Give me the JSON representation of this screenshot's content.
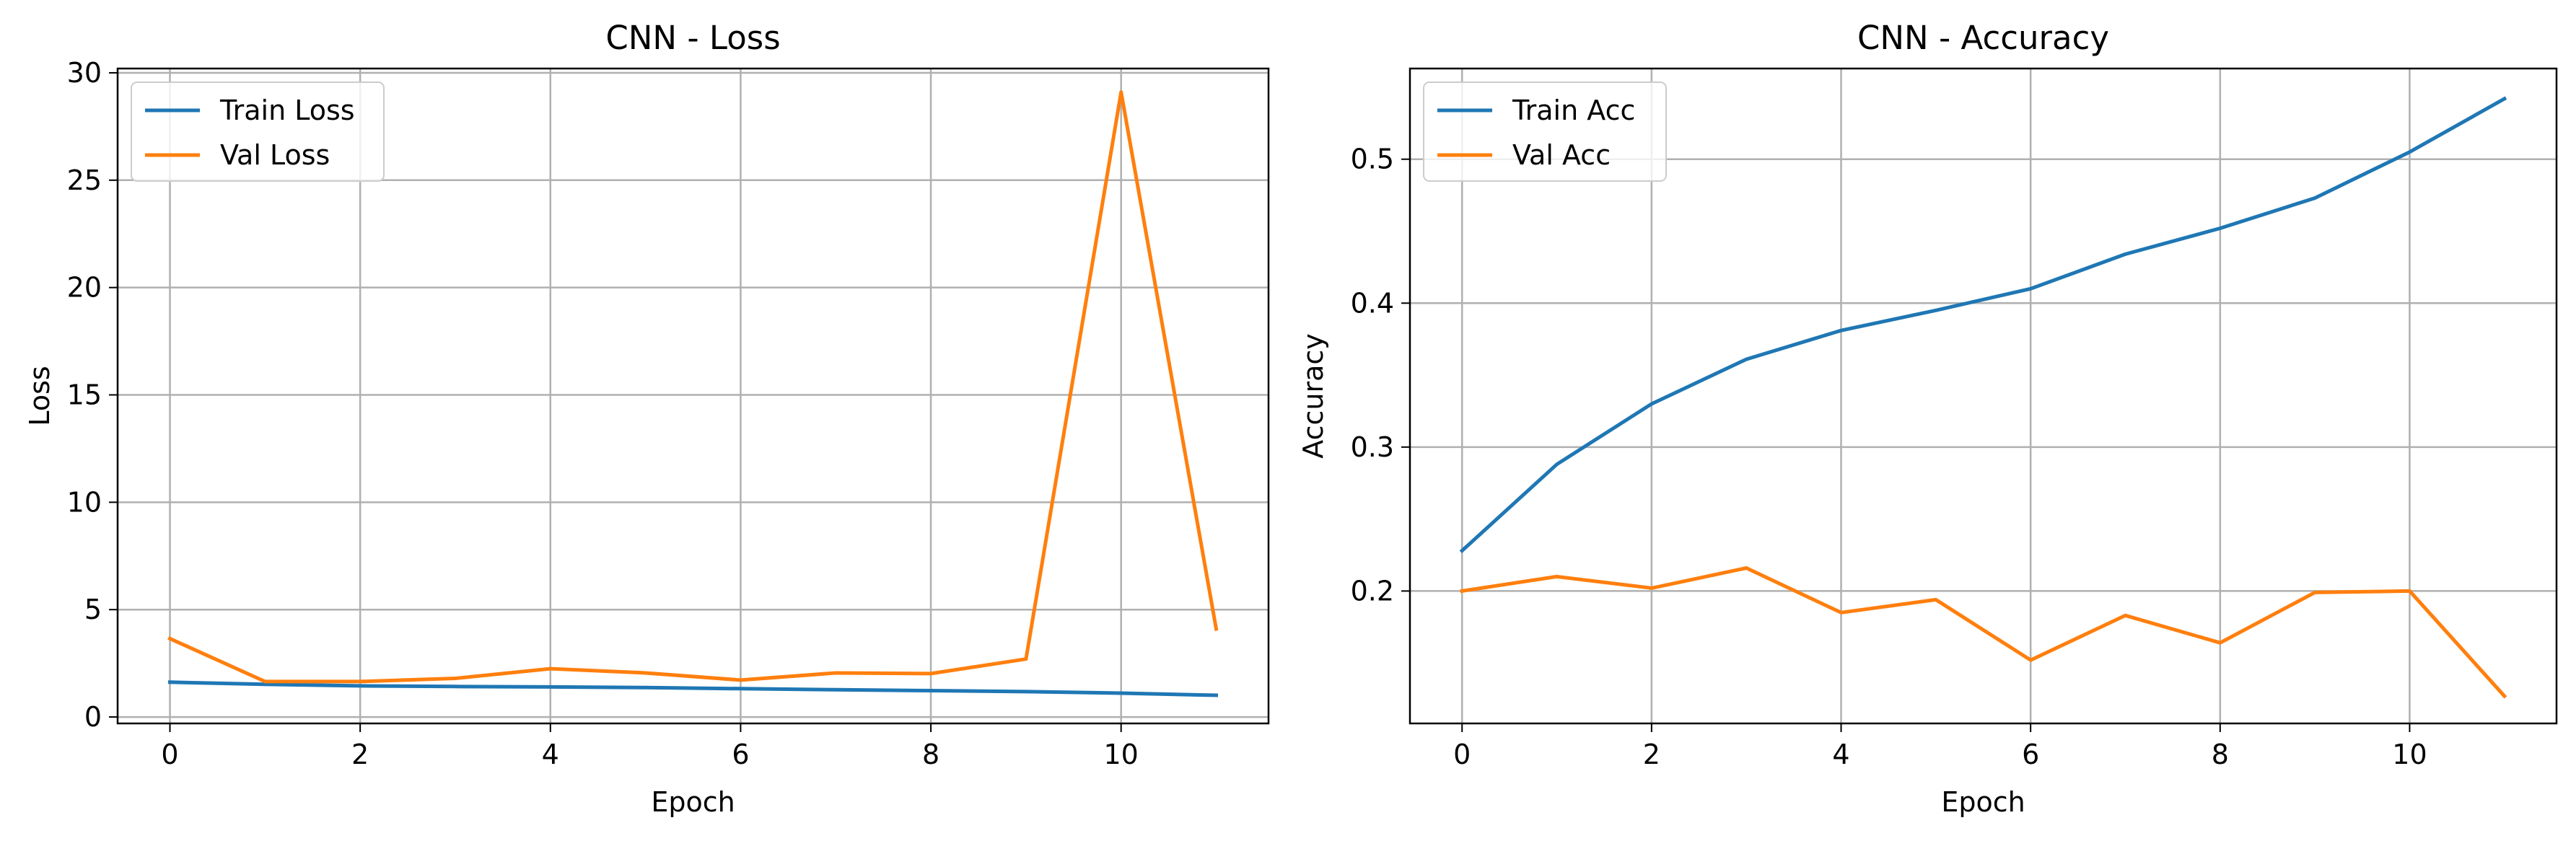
{
  "chart_data": [
    {
      "type": "line",
      "title": "CNN - Loss",
      "xlabel": "Epoch",
      "ylabel": "Loss",
      "xlim": [
        -0.55,
        11.55
      ],
      "ylim": [
        -0.3,
        30.2
      ],
      "xticks": [
        0,
        2,
        4,
        6,
        8,
        10
      ],
      "yticks": [
        0,
        5,
        10,
        15,
        20,
        25,
        30
      ],
      "grid": true,
      "legend_position": "upper left",
      "x": [
        0,
        1,
        2,
        3,
        4,
        5,
        6,
        7,
        8,
        9,
        10,
        11
      ],
      "series": [
        {
          "name": "Train Loss",
          "color": "#1f77b4",
          "values": [
            1.62,
            1.52,
            1.45,
            1.42,
            1.4,
            1.37,
            1.32,
            1.27,
            1.23,
            1.18,
            1.11,
            1.01
          ]
        },
        {
          "name": "Val Loss",
          "color": "#ff7f0e",
          "values": [
            3.65,
            1.65,
            1.65,
            1.8,
            2.25,
            2.05,
            1.72,
            2.05,
            2.02,
            2.7,
            29.1,
            4.1
          ]
        }
      ]
    },
    {
      "type": "line",
      "title": "CNN - Accuracy",
      "xlabel": "Epoch",
      "ylabel": "Accuracy",
      "xlim": [
        -0.55,
        11.55
      ],
      "ylim": [
        0.108,
        0.563
      ],
      "xticks": [
        0,
        2,
        4,
        6,
        8,
        10
      ],
      "yticks": [
        0.2,
        0.3,
        0.4,
        0.5
      ],
      "grid": true,
      "legend_position": "upper left",
      "x": [
        0,
        1,
        2,
        3,
        4,
        5,
        6,
        7,
        8,
        9,
        10,
        11
      ],
      "series": [
        {
          "name": "Train Acc",
          "color": "#1f77b4",
          "values": [
            0.228,
            0.288,
            0.33,
            0.361,
            0.381,
            0.395,
            0.41,
            0.434,
            0.452,
            0.473,
            0.505,
            0.542
          ]
        },
        {
          "name": "Val Acc",
          "color": "#ff7f0e",
          "values": [
            0.2,
            0.21,
            0.202,
            0.216,
            0.185,
            0.194,
            0.152,
            0.183,
            0.164,
            0.199,
            0.2,
            0.127
          ]
        }
      ]
    }
  ]
}
